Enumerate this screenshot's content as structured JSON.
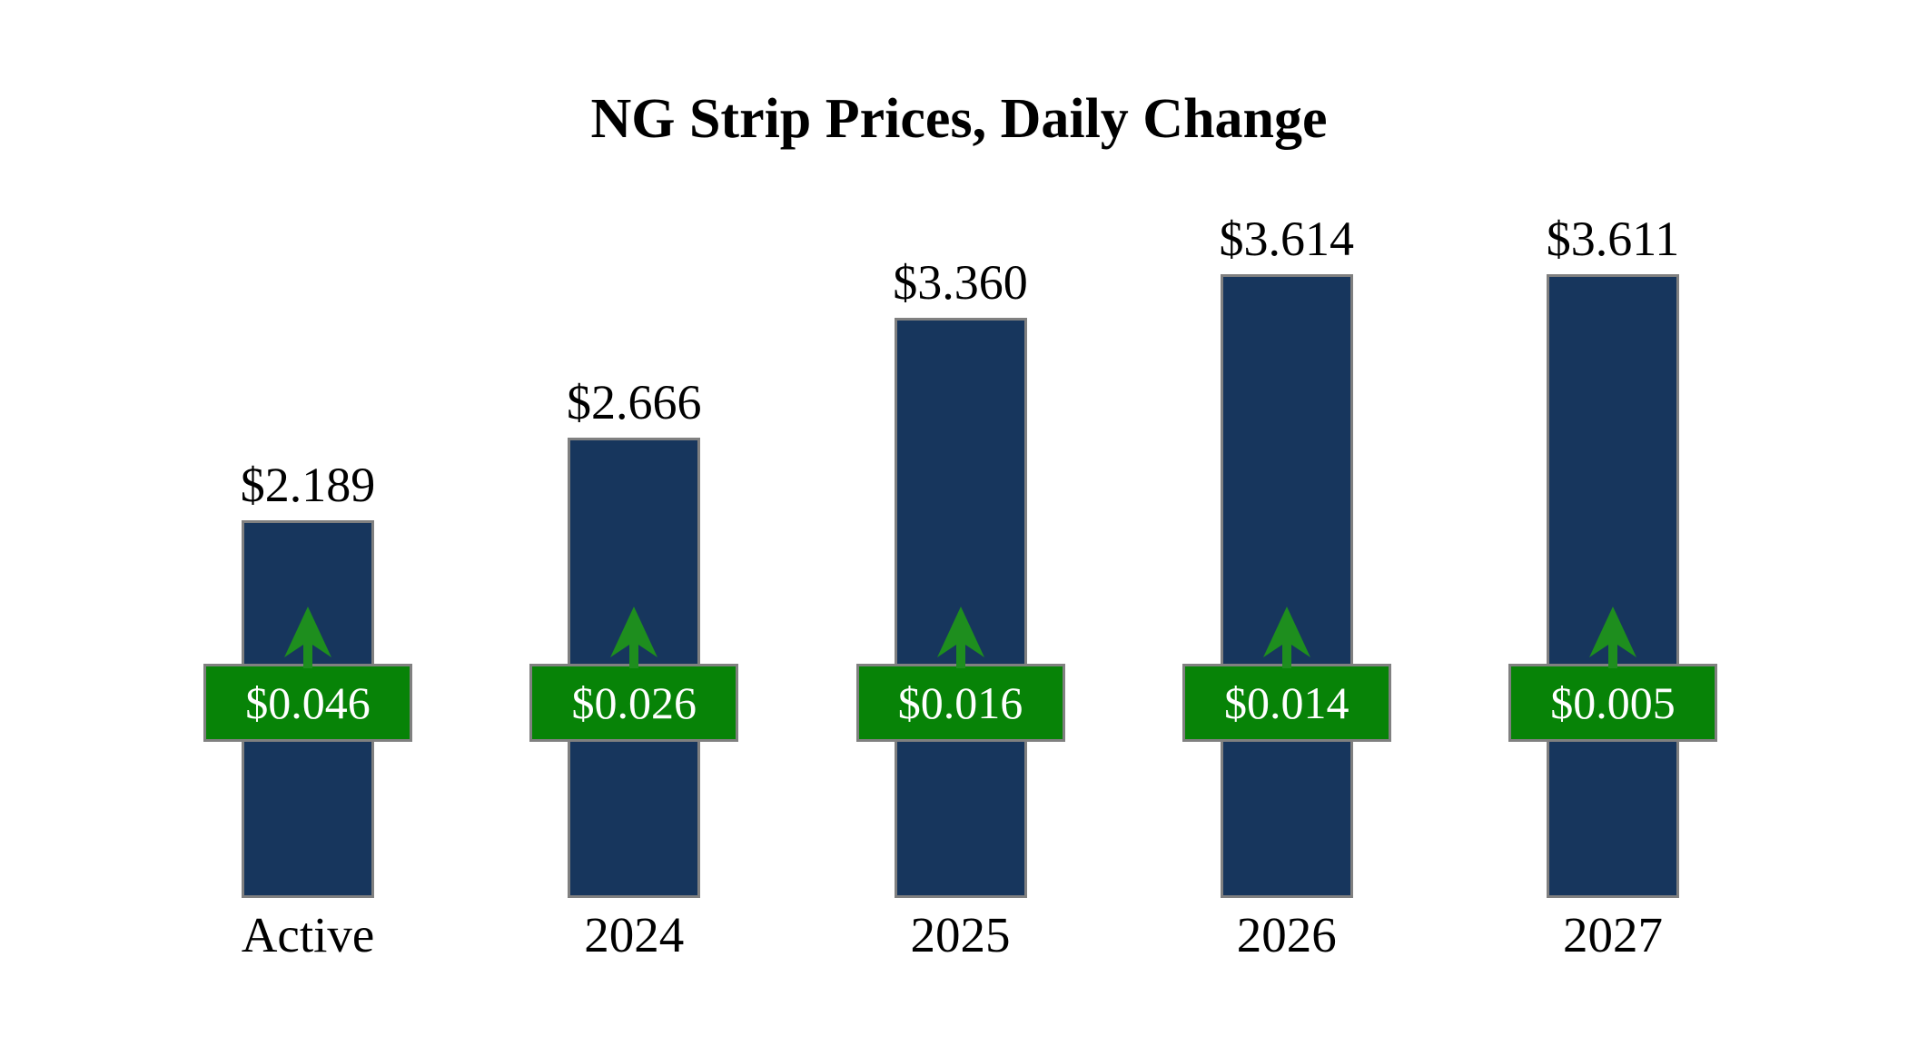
{
  "title": "NG Strip Prices, Daily Change",
  "chart_data": {
    "type": "bar",
    "title": "NG Strip Prices, Daily Change",
    "categories": [
      "Active",
      "2024",
      "2025",
      "2026",
      "2027"
    ],
    "series": [
      {
        "name": "strip_price",
        "values": [
          2.189,
          2.666,
          3.36,
          3.614,
          3.611
        ]
      },
      {
        "name": "daily_change",
        "values": [
          0.046,
          0.026,
          0.016,
          0.014,
          0.005
        ]
      }
    ],
    "value_labels": [
      "$2.189",
      "$2.666",
      "$3.360",
      "$3.614",
      "$3.611"
    ],
    "change_labels": [
      "$0.046",
      "$0.026",
      "$0.016",
      "$0.014",
      "$0.005"
    ],
    "change_direction": [
      "up",
      "up",
      "up",
      "up",
      "up"
    ],
    "xlabel": "",
    "ylabel": "",
    "ylim": [
      0,
      3.8
    ],
    "grid": false,
    "legend": false,
    "axes_visible": false,
    "colors": {
      "background": "#ffffff",
      "bar": "#17365D",
      "bar_border": "#808080",
      "badge": "#078307",
      "badge_border": "#808080",
      "badge_text": "#ffffff",
      "arrow": "#1e8e1e",
      "label_text": "#000000"
    }
  }
}
